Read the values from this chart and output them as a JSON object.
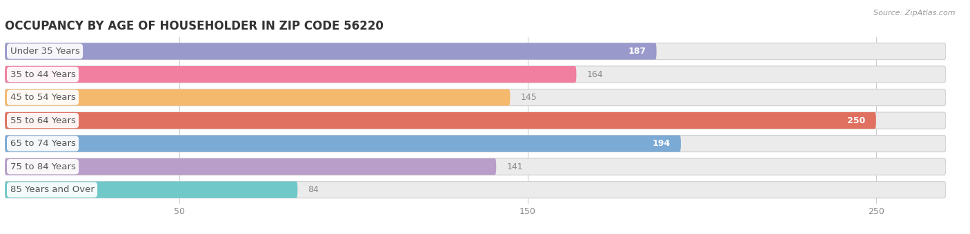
{
  "title": "OCCUPANCY BY AGE OF HOUSEHOLDER IN ZIP CODE 56220",
  "source": "Source: ZipAtlas.com",
  "categories": [
    "Under 35 Years",
    "35 to 44 Years",
    "45 to 54 Years",
    "55 to 64 Years",
    "65 to 74 Years",
    "75 to 84 Years",
    "85 Years and Over"
  ],
  "values": [
    187,
    164,
    145,
    250,
    194,
    141,
    84
  ],
  "bar_colors": [
    "#9999cc",
    "#f07fa0",
    "#f5b96e",
    "#e07060",
    "#7baad4",
    "#b89ec8",
    "#70c8c8"
  ],
  "bar_bg_color": "#ebebeb",
  "xlim_max": 270,
  "xticks": [
    50,
    150,
    250
  ],
  "title_fontsize": 12,
  "label_fontsize": 9.5,
  "value_fontsize": 9,
  "bar_height": 0.72,
  "bar_gap": 0.28,
  "background_color": "#ffffff",
  "inside_label_threshold": 170,
  "value_label_color_inside": "#ffffff",
  "value_label_color_outside": "#888888",
  "category_label_color": "#555555"
}
